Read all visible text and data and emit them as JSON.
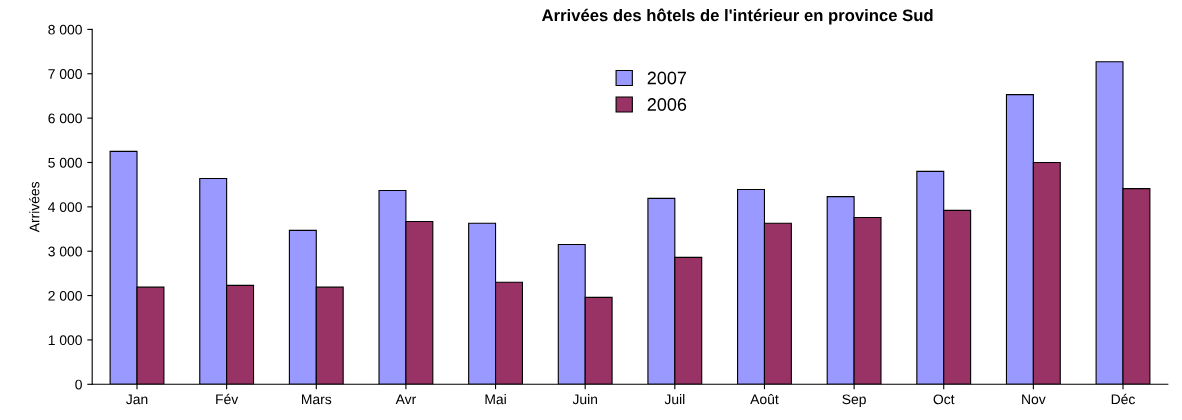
{
  "chart_data": {
    "type": "bar",
    "title": "Arrivées des hôtels de l'intérieur en province Sud",
    "ylabel": "Arrivées",
    "categories": [
      "Jan",
      "Fév",
      "Mars",
      "Avr",
      "Mai",
      "Juin",
      "Juil",
      "Août",
      "Sep",
      "Oct",
      "Nov",
      "Déc"
    ],
    "series": [
      {
        "name": "2007",
        "color": "#9999ff",
        "values": [
          5250,
          4640,
          3470,
          4370,
          3630,
          3150,
          4190,
          4390,
          4230,
          4800,
          6530,
          7270
        ]
      },
      {
        "name": "2006",
        "color": "#993366",
        "values": [
          2190,
          2230,
          2190,
          3670,
          2300,
          1960,
          2860,
          3630,
          3760,
          3920,
          5000,
          4410
        ]
      }
    ],
    "ylim": [
      0,
      8000
    ],
    "yticks": [
      0,
      {
        "value": 1000,
        "label": "1 000"
      },
      {
        "value": 2000,
        "label": "2 000"
      },
      {
        "value": 3000,
        "label": "3 000"
      },
      {
        "value": 4000,
        "label": "4 000"
      },
      {
        "value": 5000,
        "label": "5 000"
      },
      {
        "value": 6000,
        "label": "6 000"
      },
      {
        "value": 7000,
        "label": "7 000"
      },
      {
        "value": 8000,
        "label": "8 000"
      }
    ],
    "grid": false,
    "legend": "top"
  }
}
